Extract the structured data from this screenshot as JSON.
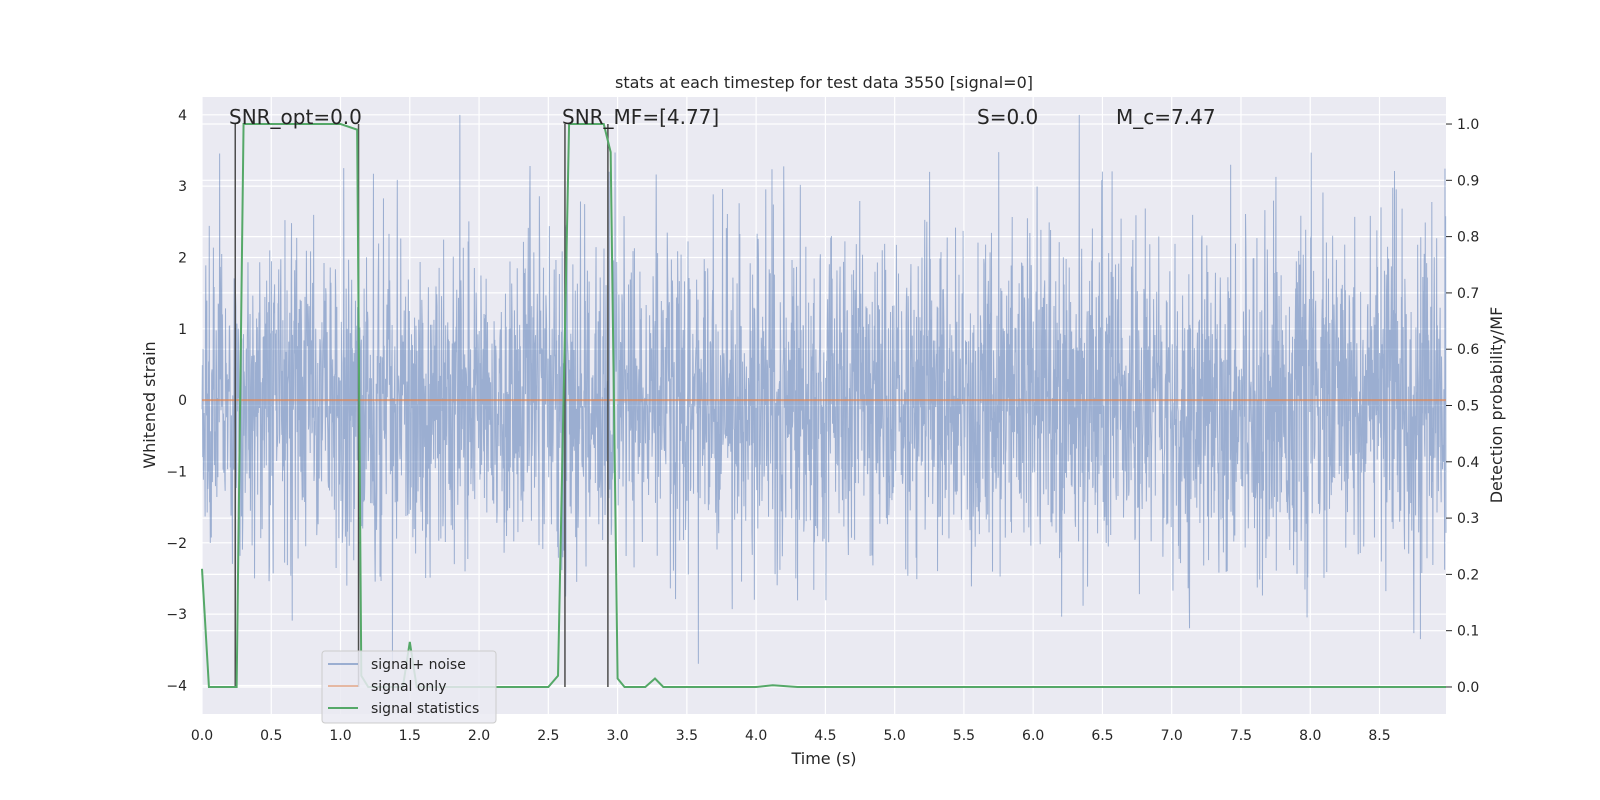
{
  "chart_data": {
    "type": "line",
    "title": "stats at each timestep for test data 3550 [signal=0]",
    "xlabel": "Time (s)",
    "ylabel": "Whitened strain",
    "y2label": "Detection probability/MF",
    "xlim": [
      0.0,
      8.98
    ],
    "ylim": [
      -4.4,
      4.25
    ],
    "y2lim": [
      -0.048,
      1.048
    ],
    "xticks": [
      0.0,
      0.5,
      1.0,
      1.5,
      2.0,
      2.5,
      3.0,
      3.5,
      4.0,
      4.5,
      5.0,
      5.5,
      6.0,
      6.5,
      7.0,
      7.5,
      8.0,
      8.5
    ],
    "xtick_labels": [
      "0.0",
      "0.5",
      "1.0",
      "1.5",
      "2.0",
      "2.5",
      "3.0",
      "3.5",
      "4.0",
      "4.5",
      "5.0",
      "5.5",
      "6.0",
      "6.5",
      "7.0",
      "7.5",
      "8.0",
      "8.5"
    ],
    "yticks": [
      4,
      3,
      2,
      1,
      0,
      -1,
      -2,
      -3,
      -4
    ],
    "ytick_labels": [
      "4",
      "3",
      "2",
      "1",
      "0",
      "−1",
      "−2",
      "−3",
      "−4"
    ],
    "y2ticks": [
      1.0,
      0.9,
      0.8,
      0.7,
      0.6,
      0.5,
      0.4,
      0.3,
      0.2,
      0.1,
      0.0
    ],
    "y2tick_labels": [
      "1.0",
      "0.9",
      "0.8",
      "0.7",
      "0.6",
      "0.5",
      "0.4",
      "0.3",
      "0.2",
      "0.1",
      "0.0"
    ],
    "grid": true,
    "legend_position": "lower-left",
    "series": [
      {
        "name": "signal+ noise",
        "color": "#4c72b0",
        "kind": "noise",
        "rms": 1.0,
        "max_abs": 4.0
      },
      {
        "name": "signal only",
        "color": "#dd8452",
        "x": [
          0.0,
          8.98
        ],
        "y": [
          0.0,
          0.0
        ]
      },
      {
        "name": "signal statistics",
        "color": "#55a868",
        "axis": "right",
        "x": [
          0.0,
          0.05,
          0.25,
          0.3,
          1.0,
          1.12,
          1.15,
          1.2,
          1.45,
          1.5,
          1.55,
          1.7,
          2.5,
          2.57,
          2.65,
          2.7,
          2.9,
          2.95,
          3.0,
          3.05,
          3.2,
          3.27,
          3.33,
          3.4,
          3.6,
          4.0,
          4.12,
          4.3,
          8.98
        ],
        "y": [
          0.21,
          0.0,
          0.0,
          1.0,
          1.0,
          0.99,
          0.02,
          0.0,
          0.0,
          0.08,
          0.0,
          0.0,
          0.0,
          0.02,
          1.0,
          1.0,
          1.0,
          0.95,
          0.015,
          0.0,
          0.0,
          0.015,
          0.0,
          0.0,
          0.0,
          0.0,
          0.003,
          0.0,
          0.0
        ]
      }
    ],
    "vlines": [
      {
        "x": 0.24,
        "color": "#4d4d4d"
      },
      {
        "x": 1.13,
        "color": "#4d4d4d"
      },
      {
        "x": 2.62,
        "color": "#4d4d4d"
      },
      {
        "x": 2.93,
        "color": "#4d4d4d"
      }
    ],
    "annotations": [
      {
        "text": "SNR_opt=0.0",
        "x": 0.2
      },
      {
        "text": "SNR_MF=[4.77]",
        "x": 2.6
      },
      {
        "text": "S=0.0",
        "x": 5.6
      },
      {
        "text": "M_c=7.47",
        "x": 6.6
      }
    ]
  }
}
